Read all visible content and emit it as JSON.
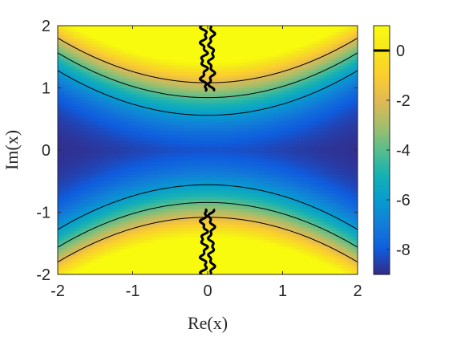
{
  "chart_data": {
    "type": "heatmap",
    "title": "",
    "xlabel": "Re(x)",
    "ylabel": "Im(x)",
    "xlim": [
      -2,
      2
    ],
    "ylim": [
      -2,
      2
    ],
    "x_ticks": [
      -2,
      -1,
      0,
      1,
      2
    ],
    "x_tick_labels": [
      "-2",
      "-1",
      "0",
      "1",
      "2"
    ],
    "y_ticks": [
      -2,
      -1,
      0,
      1,
      2
    ],
    "y_tick_labels": [
      "-2",
      "-1",
      "0",
      "1",
      "2"
    ],
    "colorbar": {
      "range": [
        -9,
        1
      ],
      "ticks": [
        0,
        -2,
        -4,
        -6,
        -8
      ],
      "tick_labels": [
        "0",
        "-2",
        "-4",
        "-6",
        "-8"
      ],
      "colormap": "parula",
      "highlighted_level": 0
    },
    "contour_levels": [
      -6,
      -4,
      -2,
      0
    ],
    "highlighted_contour_color": "#000000",
    "max_value": 1,
    "min_value": -9
  }
}
